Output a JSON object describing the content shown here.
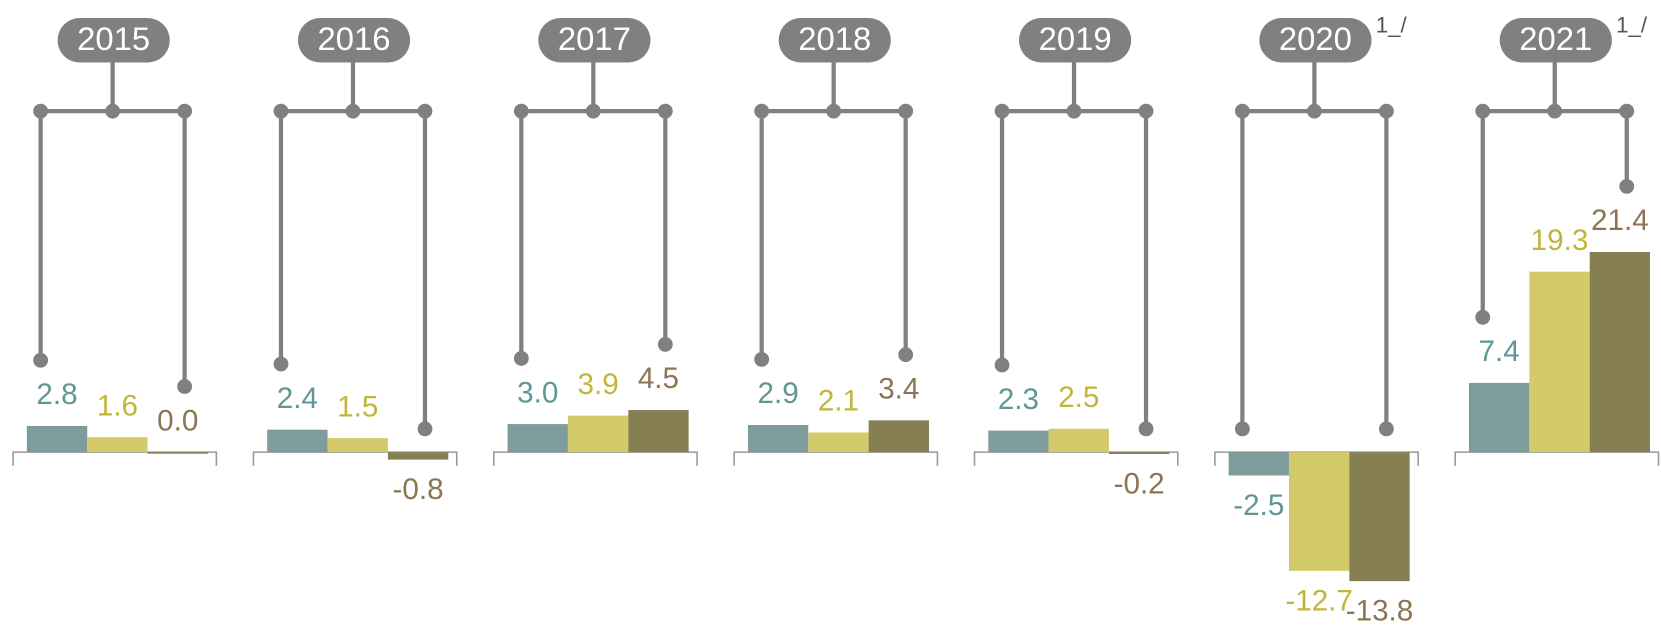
{
  "chart_data": {
    "type": "bar",
    "categories": [
      "2015",
      "2016",
      "2017",
      "2018",
      "2019",
      "2020",
      "2021"
    ],
    "category_notes": [
      null,
      null,
      null,
      null,
      null,
      "1_/",
      "1_/"
    ],
    "series": [
      {
        "color": "#7f9c9c",
        "label_color": "#5f9797",
        "values": [
          2.8,
          2.4,
          3.0,
          2.9,
          2.3,
          -2.5,
          7.4
        ],
        "value_labels": [
          "2.8",
          "2.4",
          "3.0",
          "2.9",
          "2.3",
          "-2.5",
          "7.4"
        ]
      },
      {
        "color": "#d3cb6b",
        "label_color": "#c2b43c",
        "values": [
          1.6,
          1.5,
          3.9,
          2.1,
          2.5,
          -12.7,
          19.3
        ],
        "value_labels": [
          "1.6",
          "1.5",
          "3.9",
          "2.1",
          "2.5",
          "-12.7",
          "19.3"
        ]
      },
      {
        "color": "#857f52",
        "label_color": "#8c7552",
        "values": [
          0.0,
          -0.8,
          4.5,
          3.4,
          -0.2,
          -13.8,
          21.4
        ],
        "value_labels": [
          "0.0",
          "-0.8",
          "4.5",
          "3.4",
          "-0.2",
          "-13.8",
          "21.4"
        ]
      }
    ]
  }
}
